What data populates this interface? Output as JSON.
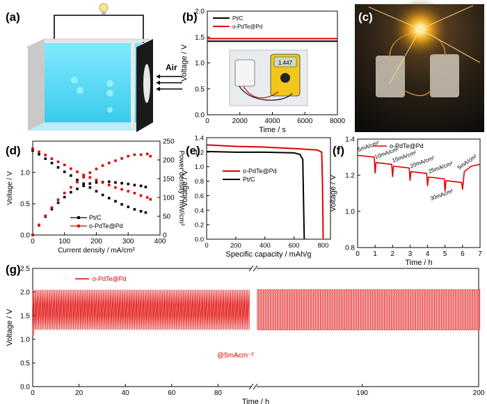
{
  "panel_labels": [
    "(a)",
    "(b)",
    "(c)",
    "(d)",
    "(e)",
    "(f)",
    "(g)"
  ],
  "panel_a": {
    "air_label": "Air",
    "bulb_icon": "lightbulb-icon"
  },
  "panel_b_inset": {
    "display_reading": "1.447"
  },
  "chart_data": [
    {
      "id": "b",
      "type": "line",
      "xlabel": "Time / s",
      "ylabel": "Voltage / V",
      "xlim": [
        0,
        8000
      ],
      "ylim": [
        0,
        2.0
      ],
      "xticks": [
        "0",
        "2000",
        "4000",
        "6000",
        "8000"
      ],
      "yticks": [
        "0.0",
        "0.5",
        "1.0",
        "1.5",
        "2.0"
      ],
      "series": [
        {
          "name": "Pt/C",
          "color": "#000000",
          "x": [
            0,
            8000
          ],
          "y": [
            1.42,
            1.42
          ]
        },
        {
          "name": "o-PdTe@Pd",
          "color": "#e00000",
          "x": [
            0,
            8000
          ],
          "y": [
            1.47,
            1.47
          ]
        }
      ]
    },
    {
      "id": "d",
      "type": "scatter",
      "xlabel": "Current density / mA/cm²",
      "ylabel": "Voltage / V",
      "y2label": "Power density / mW/cm²",
      "xlim": [
        0,
        400
      ],
      "ylim": [
        0,
        1.5
      ],
      "y2lim": [
        0,
        250
      ],
      "xticks": [
        "0",
        "100",
        "200",
        "300",
        "400"
      ],
      "yticks": [
        "0.0",
        "0.5",
        "1.0"
      ],
      "y2ticks": [
        "0",
        "50",
        "100",
        "150",
        "200",
        "250"
      ],
      "series": [
        {
          "name": "Pt/C",
          "color": "#000000",
          "role": "polarization",
          "x": [
            0,
            20,
            40,
            60,
            80,
            100,
            120,
            140,
            160,
            180,
            200,
            220,
            240,
            260,
            280,
            300,
            320,
            340,
            355
          ],
          "y": [
            1.35,
            1.29,
            1.22,
            1.15,
            1.08,
            1.01,
            0.95,
            0.88,
            0.82,
            0.76,
            0.7,
            0.64,
            0.59,
            0.54,
            0.49,
            0.45,
            0.41,
            0.38,
            0.36
          ]
        },
        {
          "name": "Pt/C",
          "color": "#000000",
          "role": "power",
          "x": [
            0,
            20,
            40,
            60,
            80,
            100,
            120,
            140,
            160,
            180,
            200,
            220,
            240,
            260,
            280,
            300,
            320,
            340,
            355
          ],
          "y": [
            0,
            26,
            49,
            69,
            86,
            101,
            114,
            123,
            131,
            137,
            140,
            141,
            142,
            140,
            138,
            136,
            133,
            131,
            128
          ]
        },
        {
          "name": "o-PdTe@Pd",
          "color": "#e00000",
          "role": "polarization",
          "x": [
            0,
            20,
            40,
            60,
            80,
            100,
            120,
            140,
            160,
            180,
            200,
            220,
            240,
            260,
            280,
            300,
            320,
            340,
            360,
            370
          ],
          "y": [
            1.38,
            1.33,
            1.28,
            1.22,
            1.17,
            1.12,
            1.06,
            1.01,
            0.96,
            0.92,
            0.88,
            0.84,
            0.8,
            0.76,
            0.73,
            0.7,
            0.67,
            0.63,
            0.6,
            0.57
          ]
        },
        {
          "name": "o-PdTe@Pd",
          "color": "#e00000",
          "role": "power",
          "x": [
            0,
            20,
            40,
            60,
            80,
            100,
            120,
            140,
            160,
            180,
            200,
            220,
            240,
            260,
            280,
            300,
            320,
            340,
            360,
            370
          ],
          "y": [
            0,
            27,
            51,
            73,
            94,
            112,
            127,
            141,
            154,
            166,
            176,
            185,
            192,
            198,
            204,
            210,
            214,
            214,
            216,
            210
          ]
        }
      ],
      "legend": [
        "Pt/C",
        "o-PdTe@Pd"
      ]
    },
    {
      "id": "e",
      "type": "line",
      "xlabel": "Specific capacity / mAh/g",
      "ylabel": "Voltage / V",
      "xlim": [
        0,
        850
      ],
      "ylim": [
        0,
        1.4
      ],
      "xticks": [
        "0",
        "200",
        "400",
        "600",
        "800"
      ],
      "yticks": [
        "0.0",
        "0.2",
        "0.4",
        "0.6",
        "0.8",
        "1.0",
        "1.2",
        "1.4"
      ],
      "series": [
        {
          "name": "o-PdTe@Pd",
          "color": "#e00000",
          "x": [
            0,
            200,
            400,
            600,
            760,
            790,
            795,
            800
          ],
          "y": [
            1.3,
            1.28,
            1.27,
            1.25,
            1.23,
            1.2,
            0.8,
            0.0
          ]
        },
        {
          "name": "Pt/C",
          "color": "#000000",
          "x": [
            0,
            200,
            400,
            600,
            640,
            660,
            670
          ],
          "y": [
            1.21,
            1.2,
            1.2,
            1.19,
            1.17,
            1.1,
            0.0
          ]
        }
      ]
    },
    {
      "id": "f",
      "type": "line",
      "xlabel": "Time / h",
      "ylabel": "Voltage / V",
      "xlim": [
        0,
        7
      ],
      "ylim": [
        0.8,
        1.4
      ],
      "xticks": [
        "0",
        "1",
        "2",
        "3",
        "4",
        "5",
        "6",
        "7"
      ],
      "yticks": [
        "0.8",
        "1.0",
        "1.2",
        "1.4"
      ],
      "series": [
        {
          "name": "o-PdTe@Pd",
          "color": "#e00000",
          "x": [
            0,
            0.95,
            1.0,
            1.05,
            1.95,
            2.0,
            2.05,
            2.95,
            3.0,
            3.05,
            3.95,
            4.0,
            4.05,
            4.95,
            5.0,
            5.05,
            5.95,
            6.0,
            6.1,
            6.5,
            7.0
          ],
          "y": [
            1.31,
            1.3,
            1.21,
            1.27,
            1.26,
            1.19,
            1.25,
            1.24,
            1.17,
            1.22,
            1.21,
            1.14,
            1.19,
            1.18,
            1.11,
            1.17,
            1.16,
            1.12,
            1.22,
            1.25,
            1.26
          ]
        }
      ],
      "annotations": [
        "5mA/cm²",
        "10mA/cm²",
        "15mA/cm²",
        "20mA/cm²",
        "25mA/cm²",
        "30mAcm²",
        "5mA/cm²"
      ]
    },
    {
      "id": "g",
      "type": "line",
      "xlabel": "Time / h",
      "ylabel": "Voltage / V",
      "xlim": [
        0,
        200
      ],
      "ylim": [
        0,
        2.5
      ],
      "xticks": [
        "0",
        "20",
        "40",
        "60",
        "80",
        "190",
        "200"
      ],
      "yticks": [
        "0.0",
        "0.5",
        "1.0",
        "1.5",
        "2.0",
        "2.5"
      ],
      "break": "after ~100 h",
      "series": [
        {
          "name": "o-PdTe@Pd",
          "color": "#e00000",
          "charge_v": 2.05,
          "discharge_v": 1.2,
          "cycle_h": 1.0
        }
      ],
      "annotation": "@5mAcm⁻²"
    }
  ]
}
